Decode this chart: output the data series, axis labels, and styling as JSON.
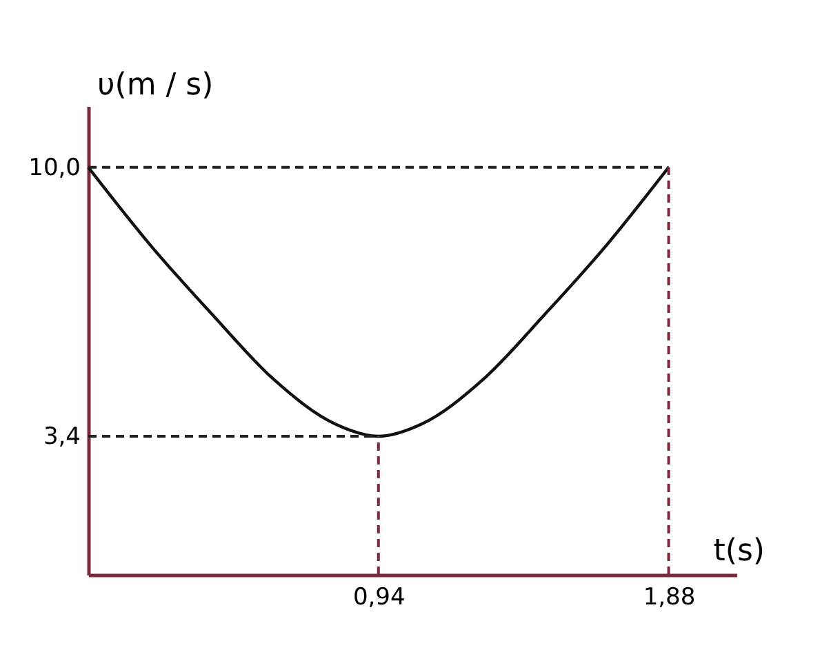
{
  "chart_data": {
    "type": "line",
    "xlabel": "t(s)",
    "ylabel": "υ(m / s)",
    "x": [
      0,
      0.2,
      0.4,
      0.6,
      0.8,
      0.94,
      1.08,
      1.28,
      1.48,
      1.68,
      1.88
    ],
    "series": [
      {
        "color": "#111111",
        "values": [
          10.0,
          8.1,
          6.4,
          4.8,
          3.7,
          3.4,
          3.7,
          4.8,
          6.4,
          8.1,
          10.0
        ]
      }
    ],
    "xlim": [
      0,
      2.1
    ],
    "ylim": [
      0,
      11.5
    ],
    "xticks": [
      {
        "value": 0.94,
        "label": "0,94"
      },
      {
        "value": 1.88,
        "label": "1,88"
      }
    ],
    "yticks": [
      {
        "value": 3.4,
        "label": "3,4"
      },
      {
        "value": 10.0,
        "label": "10,0"
      }
    ],
    "ref_lines": [
      {
        "axis": "y",
        "value": 10.0,
        "color": "#222222",
        "line_style": "dashed"
      },
      {
        "axis": "y",
        "value": 3.4,
        "color": "#222222",
        "line_style": "dashed"
      },
      {
        "axis": "x",
        "value": 0.94,
        "color": "#7a2a3a",
        "line_style": "dashed"
      },
      {
        "axis": "x",
        "value": 1.88,
        "color": "#7a2a3a",
        "line_style": "dashed"
      }
    ],
    "marker": "none"
  }
}
